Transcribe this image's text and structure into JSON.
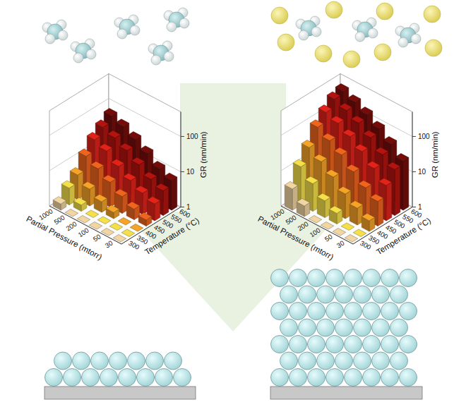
{
  "chart_data": [
    {
      "type": "bar3d",
      "xlabel": "Partial Pressure (mtorr)",
      "zlabel": "Temperature (°C)",
      "ylabel": "GR (nm/min)",
      "categories": [
        1000,
        500,
        200,
        100,
        50,
        30
      ],
      "series": [
        {
          "name": "300",
          "color": "#f2d6a2",
          "values": [
            1.5,
            1,
            1,
            1,
            1,
            1
          ]
        },
        {
          "name": "350",
          "color": "#f5e04a",
          "values": [
            3,
            1.5,
            1,
            1,
            1,
            1
          ]
        },
        {
          "name": "400",
          "color": "#f6a427",
          "values": [
            5,
            3,
            2,
            1.5,
            1,
            1
          ]
        },
        {
          "name": "450",
          "color": "#f0651e",
          "values": [
            12,
            8,
            5,
            3,
            2,
            1.5
          ]
        },
        {
          "name": "500",
          "color": "#e3231a",
          "values": [
            25,
            18,
            10,
            6,
            4,
            3
          ]
        },
        {
          "name": "550",
          "color": "#b3140f",
          "values": [
            40,
            30,
            20,
            12,
            7,
            5
          ]
        },
        {
          "name": "600",
          "color": "#760c0a",
          "values": [
            60,
            45,
            30,
            18,
            10,
            7
          ]
        }
      ],
      "ylim": [
        1,
        500
      ],
      "yticks": [
        1,
        10,
        100
      ],
      "log": "y",
      "grid": true
    },
    {
      "type": "bar3d",
      "xlabel": "Partial Pressure (mtorr)",
      "zlabel": "Temperature (°C)",
      "ylabel": "GR (nm/min)",
      "categories": [
        1000,
        500,
        200,
        100,
        50,
        30
      ],
      "series": [
        {
          "name": "300",
          "color": "#f2d6a2",
          "values": [
            4,
            2,
            1,
            1,
            1,
            1
          ]
        },
        {
          "name": "350",
          "color": "#f5e04a",
          "values": [
            12,
            6,
            3,
            2,
            1,
            1
          ]
        },
        {
          "name": "400",
          "color": "#f6a427",
          "values": [
            30,
            18,
            10,
            5,
            3,
            2
          ]
        },
        {
          "name": "450",
          "color": "#f0651e",
          "values": [
            80,
            50,
            30,
            15,
            8,
            5
          ]
        },
        {
          "name": "500",
          "color": "#e3231a",
          "values": [
            150,
            110,
            70,
            40,
            20,
            10
          ]
        },
        {
          "name": "550",
          "color": "#b3140f",
          "values": [
            250,
            180,
            120,
            70,
            35,
            20
          ]
        },
        {
          "name": "600",
          "color": "#760c0a",
          "values": [
            300,
            220,
            150,
            90,
            50,
            25
          ]
        }
      ],
      "ylim": [
        1,
        500
      ],
      "yticks": [
        1,
        10,
        100
      ],
      "log": "y",
      "grid": true
    }
  ]
}
